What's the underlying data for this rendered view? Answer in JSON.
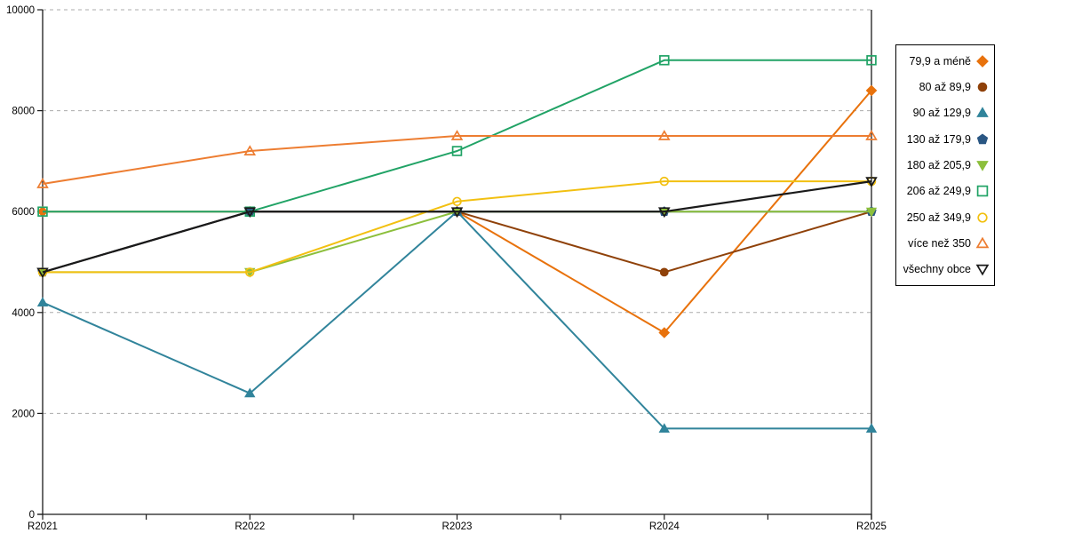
{
  "chart_data": {
    "type": "line",
    "title": "",
    "xlabel": "",
    "ylabel": "",
    "x": [
      "R2021",
      "R2022",
      "R2023",
      "R2024",
      "R2025"
    ],
    "yticks": [
      "0",
      "2000",
      "4000",
      "6000",
      "8000",
      "10000"
    ],
    "ylim": [
      0,
      10000
    ],
    "ytick_step": 2000,
    "grid": "dashed-horizontal",
    "legend_position": "right",
    "series": [
      {
        "name": "79,9 a méně",
        "color": "#E8720C",
        "marker": "diamond",
        "filled": true,
        "values": [
          6000,
          6000,
          6000,
          3600,
          8400
        ]
      },
      {
        "name": "80 až 89,9",
        "color": "#8F4109",
        "marker": "circle",
        "filled": true,
        "values": [
          4800,
          6000,
          6000,
          4800,
          6000
        ]
      },
      {
        "name": "90 až 129,9",
        "color": "#31849B",
        "marker": "triangle-up",
        "filled": true,
        "values": [
          4200,
          2400,
          6000,
          1700,
          1700
        ]
      },
      {
        "name": "130 až 179,9",
        "color": "#2A5783",
        "marker": "pentagon",
        "filled": true,
        "values": [
          4800,
          6000,
          6000,
          6000,
          6000
        ]
      },
      {
        "name": "180 až 205,9",
        "color": "#8CBF3C",
        "marker": "triangle-down",
        "filled": true,
        "values": [
          4800,
          4800,
          6000,
          6000,
          6000
        ]
      },
      {
        "name": "206 až 249,9",
        "color": "#21A366",
        "marker": "square",
        "filled": false,
        "values": [
          6000,
          6000,
          7200,
          9000,
          9000
        ]
      },
      {
        "name": "250 až 349,9",
        "color": "#F2C011",
        "marker": "circle",
        "filled": false,
        "values": [
          4800,
          4800,
          6200,
          6600,
          6600
        ]
      },
      {
        "name": "více než 350",
        "color": "#ED7D31",
        "marker": "triangle-up",
        "filled": false,
        "values": [
          6550,
          7200,
          7500,
          7500,
          7500
        ]
      },
      {
        "name": "všechny obce",
        "color": "#1A1A1A",
        "marker": "triangle-down",
        "filled": false,
        "values": [
          4800,
          6000,
          6000,
          6000,
          6600
        ]
      }
    ],
    "axis_color": "#1A1A1A",
    "gridline_color": "#ABABAB"
  }
}
